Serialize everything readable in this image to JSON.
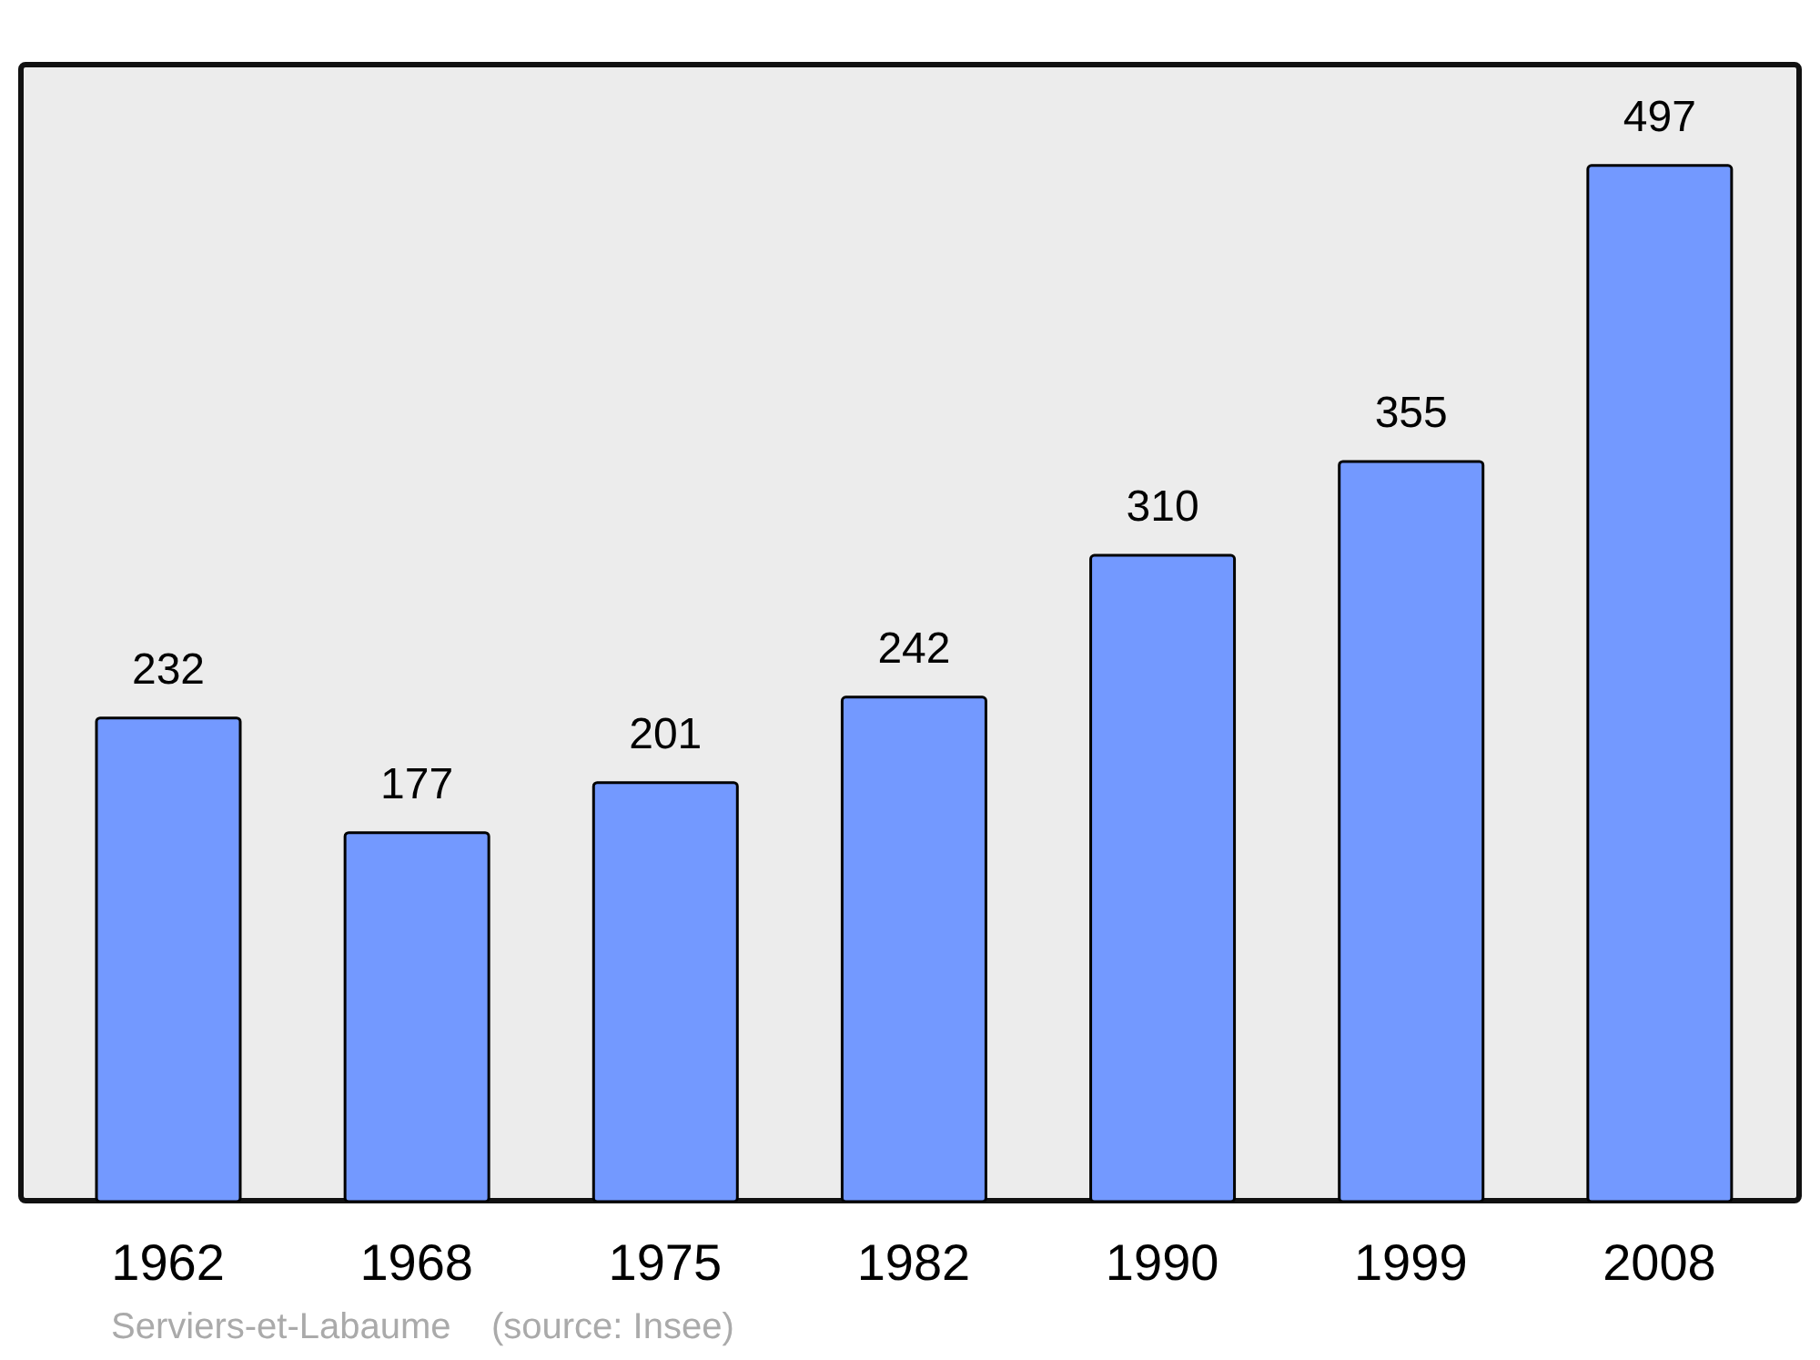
{
  "chart_data": {
    "type": "bar",
    "categories": [
      "1962",
      "1968",
      "1975",
      "1982",
      "1990",
      "1999",
      "2008"
    ],
    "values": [
      232,
      177,
      201,
      242,
      310,
      355,
      497
    ],
    "color": "#7399ff",
    "data_labels": true,
    "annotations": [
      "Serviers-et-Labaume    (source: Insee)"
    ]
  }
}
